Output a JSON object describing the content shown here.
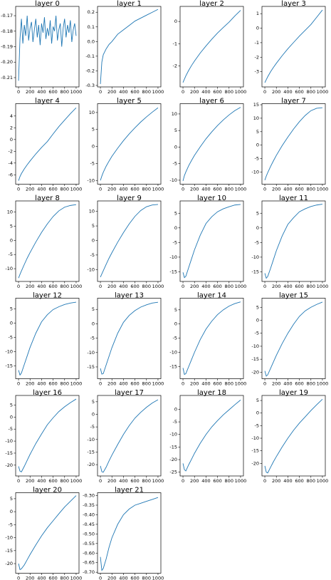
{
  "chart_data": [
    {
      "type": "line",
      "title": "layer 0",
      "color": "#1f77b4",
      "xlim": [
        -50,
        1050
      ],
      "xticks": [
        0,
        200,
        400,
        600,
        800,
        1000
      ],
      "x": [
        0,
        25,
        50,
        75,
        100,
        125,
        150,
        175,
        200,
        225,
        250,
        275,
        300,
        325,
        350,
        375,
        400,
        425,
        450,
        475,
        500,
        525,
        550,
        575,
        600,
        625,
        650,
        675,
        700,
        725,
        750,
        775,
        800,
        825,
        850,
        875,
        900,
        925,
        950,
        975,
        1000
      ],
      "values": [
        -0.212,
        -0.185,
        -0.172,
        -0.188,
        -0.176,
        -0.183,
        -0.17,
        -0.186,
        -0.178,
        -0.174,
        -0.187,
        -0.179,
        -0.172,
        -0.184,
        -0.176,
        -0.189,
        -0.175,
        -0.181,
        -0.171,
        -0.185,
        -0.178,
        -0.183,
        -0.173,
        -0.188,
        -0.177,
        -0.18,
        -0.17,
        -0.186,
        -0.179,
        -0.175,
        -0.19,
        -0.178,
        -0.172,
        -0.184,
        -0.176,
        -0.181,
        -0.173,
        -0.187,
        -0.179,
        -0.175,
        -0.183
      ],
      "ylim": [
        -0.216,
        -0.164
      ],
      "yticks": [
        -0.21,
        {
          "value": -0.2,
          "label": "-0.20"
        },
        -0.19,
        -0.18,
        -0.17
      ]
    },
    {
      "type": "line",
      "title": "layer 1",
      "color": "#1f77b4",
      "xlim": [
        -50,
        1050
      ],
      "xticks": [
        0,
        200,
        400,
        600,
        800,
        1000
      ],
      "x": [
        0,
        25,
        50,
        100,
        150,
        200,
        300,
        400,
        500,
        600,
        700,
        800,
        900,
        1000
      ],
      "values": [
        -0.29,
        -0.14,
        -0.09,
        -0.05,
        -0.02,
        0.0,
        0.05,
        0.08,
        0.11,
        0.14,
        0.16,
        0.18,
        0.2,
        0.22
      ],
      "ylim": [
        -0.31,
        0.24
      ],
      "yticks": [
        -0.3,
        -0.2,
        -0.1,
        {
          "value": 0,
          "label": "0.0"
        },
        0.1,
        0.2
      ]
    },
    {
      "type": "line",
      "title": "layer 2",
      "color": "#1f77b4",
      "xlim": [
        -50,
        1050
      ],
      "xticks": [
        0,
        200,
        400,
        600,
        800,
        1000
      ],
      "x": [
        0,
        25,
        50,
        100,
        150,
        200,
        300,
        400,
        500,
        600,
        700,
        800,
        900,
        1000
      ],
      "values": [
        -2.75,
        -2.6,
        -2.45,
        -2.2,
        -1.98,
        -1.78,
        -1.42,
        -1.1,
        -0.8,
        -0.52,
        -0.27,
        -0.03,
        0.25,
        0.5
      ],
      "ylim": [
        -2.95,
        0.68
      ],
      "yticks": [
        -2,
        -1,
        0
      ]
    },
    {
      "type": "line",
      "title": "layer 3",
      "color": "#1f77b4",
      "xlim": [
        -50,
        1050
      ],
      "xticks": [
        0,
        200,
        400,
        600,
        800,
        1000
      ],
      "x": [
        0,
        25,
        50,
        100,
        150,
        200,
        300,
        400,
        500,
        600,
        700,
        800,
        900,
        1000
      ],
      "values": [
        -3.75,
        -3.55,
        -3.35,
        -3.0,
        -2.7,
        -2.42,
        -1.9,
        -1.42,
        -0.98,
        -0.55,
        -0.15,
        0.25,
        0.75,
        1.25
      ],
      "ylim": [
        -4.05,
        1.5
      ],
      "yticks": [
        -3,
        -2,
        -1,
        0,
        1
      ]
    },
    {
      "type": "line",
      "title": "layer 4",
      "color": "#1f77b4",
      "xlim": [
        -50,
        1050
      ],
      "xticks": [
        0,
        200,
        400,
        600,
        800,
        1000
      ],
      "x": [
        0,
        25,
        50,
        100,
        150,
        200,
        300,
        400,
        500,
        600,
        700,
        800,
        900,
        1000
      ],
      "values": [
        -7.0,
        -6.3,
        -5.8,
        -5.0,
        -4.3,
        -3.65,
        -2.45,
        -1.35,
        -0.35,
        0.95,
        2.2,
        3.3,
        4.4,
        5.4
      ],
      "ylim": [
        -7.6,
        6.1
      ],
      "yticks": [
        -6,
        -4,
        -2,
        0,
        2,
        4
      ]
    },
    {
      "type": "line",
      "title": "layer 5",
      "color": "#1f77b4",
      "xlim": [
        -50,
        1050
      ],
      "xticks": [
        0,
        200,
        400,
        600,
        800,
        1000
      ],
      "x": [
        0,
        25,
        50,
        100,
        150,
        200,
        300,
        400,
        500,
        600,
        700,
        800,
        900,
        1000
      ],
      "values": [
        -10,
        -8.7,
        -7.6,
        -5.8,
        -4.3,
        -2.9,
        -0.5,
        1.7,
        3.7,
        5.5,
        7.2,
        8.7,
        10.1,
        11.4
      ],
      "ylim": [
        -11.1,
        12.6
      ],
      "yticks": [
        -10,
        -5,
        0,
        5,
        10
      ]
    },
    {
      "type": "line",
      "title": "layer 6",
      "color": "#1f77b4",
      "xlim": [
        -50,
        1050
      ],
      "xticks": [
        0,
        200,
        400,
        600,
        800,
        1000
      ],
      "x": [
        0,
        25,
        50,
        100,
        150,
        200,
        300,
        400,
        500,
        600,
        700,
        800,
        900,
        1000
      ],
      "values": [
        -10.2,
        -8.6,
        -7.5,
        -5.6,
        -4.0,
        -2.5,
        0.1,
        2.5,
        4.6,
        6.5,
        8.2,
        9.7,
        11.0,
        12.0
      ],
      "ylim": [
        -11.2,
        13.1
      ],
      "yticks": [
        -10,
        -5,
        0,
        5,
        10
      ]
    },
    {
      "type": "line",
      "title": "layer 7",
      "color": "#1f77b4",
      "xlim": [
        -50,
        1050
      ],
      "xticks": [
        0,
        200,
        400,
        600,
        800,
        1000
      ],
      "x": [
        0,
        25,
        50,
        100,
        150,
        200,
        300,
        400,
        500,
        600,
        700,
        800,
        900,
        1000
      ],
      "values": [
        -13,
        -11.5,
        -10.2,
        -7.9,
        -5.8,
        -3.8,
        -0.2,
        3.0,
        6.0,
        8.7,
        11.0,
        12.8,
        13.7,
        13.9
      ],
      "ylim": [
        -14.5,
        15.4
      ],
      "yticks": [
        -10,
        -5,
        0,
        5,
        10,
        15
      ]
    },
    {
      "type": "line",
      "title": "layer 8",
      "color": "#1f77b4",
      "xlim": [
        -50,
        1050
      ],
      "xticks": [
        0,
        200,
        400,
        600,
        800,
        1000
      ],
      "x": [
        0,
        25,
        50,
        100,
        150,
        200,
        300,
        400,
        500,
        600,
        700,
        800,
        900,
        1000
      ],
      "values": [
        -13.3,
        -12,
        -10.8,
        -8.5,
        -6.3,
        -4.3,
        -0.6,
        2.8,
        5.8,
        8.4,
        10.4,
        11.7,
        12.3,
        12.6
      ],
      "ylim": [
        -14.5,
        13.9
      ],
      "yticks": [
        -10,
        -5,
        0,
        5,
        10
      ]
    },
    {
      "type": "line",
      "title": "layer 9",
      "color": "#1f77b4",
      "xlim": [
        -50,
        1050
      ],
      "xticks": [
        0,
        200,
        400,
        600,
        800,
        1000
      ],
      "x": [
        0,
        25,
        50,
        100,
        150,
        200,
        300,
        400,
        500,
        600,
        700,
        800,
        900,
        1000
      ],
      "values": [
        -12.6,
        -11.5,
        -10.4,
        -8.2,
        -6.1,
        -4.2,
        -0.6,
        2.7,
        5.7,
        8.3,
        10.3,
        11.6,
        12.2,
        12.4
      ],
      "ylim": [
        -14.1,
        13.6
      ],
      "yticks": [
        -10,
        -5,
        0,
        5,
        10
      ]
    },
    {
      "type": "line",
      "title": "layer 10",
      "color": "#1f77b4",
      "xlim": [
        -50,
        1050
      ],
      "xticks": [
        0,
        200,
        400,
        600,
        800,
        1000
      ],
      "x": [
        0,
        25,
        50,
        100,
        150,
        200,
        300,
        400,
        500,
        600,
        700,
        800,
        900,
        1000
      ],
      "values": [
        -15.2,
        -17.0,
        -16.5,
        -13.5,
        -10.5,
        -7.5,
        -2.5,
        1.5,
        3.8,
        5.5,
        6.5,
        7.2,
        7.8,
        8.0
      ],
      "ylim": [
        -18.3,
        9.2
      ],
      "yticks": [
        -15,
        -10,
        -5,
        0,
        5
      ]
    },
    {
      "type": "line",
      "title": "layer 11",
      "color": "#1f77b4",
      "xlim": [
        -50,
        1050
      ],
      "xticks": [
        0,
        200,
        400,
        600,
        800,
        1000
      ],
      "x": [
        0,
        25,
        50,
        100,
        150,
        200,
        300,
        400,
        500,
        600,
        700,
        800,
        900,
        1000
      ],
      "values": [
        -15.5,
        -17.2,
        -16.6,
        -13.8,
        -10.8,
        -7.8,
        -2.8,
        1.2,
        3.5,
        5.5,
        6.5,
        7.3,
        7.8,
        8.1
      ],
      "ylim": [
        -18.3,
        9.2
      ],
      "yticks": [
        -15,
        -10,
        -5,
        0,
        5
      ]
    },
    {
      "type": "line",
      "title": "layer 12",
      "color": "#1f77b4",
      "xlim": [
        -50,
        1050
      ],
      "xticks": [
        0,
        200,
        400,
        600,
        800,
        1000
      ],
      "x": [
        0,
        25,
        50,
        100,
        150,
        200,
        300,
        400,
        500,
        600,
        700,
        800,
        900,
        1000
      ],
      "values": [
        -16.5,
        -18.2,
        -17.5,
        -14.5,
        -11.5,
        -8.5,
        -3.5,
        0.5,
        3.0,
        4.8,
        5.8,
        6.6,
        7.1,
        7.4
      ],
      "ylim": [
        -19.5,
        8.8
      ],
      "yticks": [
        -15,
        -10,
        -5,
        0,
        5
      ]
    },
    {
      "type": "line",
      "title": "layer 13",
      "color": "#1f77b4",
      "xlim": [
        -50,
        1050
      ],
      "xticks": [
        0,
        200,
        400,
        600,
        800,
        1000
      ],
      "x": [
        0,
        25,
        50,
        100,
        150,
        200,
        300,
        400,
        500,
        600,
        700,
        800,
        900,
        1000
      ],
      "values": [
        -15.5,
        -17.5,
        -17.3,
        -14.3,
        -11.3,
        -8.3,
        -3.3,
        0.5,
        2.9,
        4.6,
        5.8,
        6.6,
        7.2,
        7.5
      ],
      "ylim": [
        -19.1,
        8.9
      ],
      "yticks": [
        -15,
        -10,
        -5,
        0,
        5
      ]
    },
    {
      "type": "line",
      "title": "layer 14",
      "color": "#1f77b4",
      "xlim": [
        -50,
        1050
      ],
      "xticks": [
        0,
        200,
        400,
        600,
        800,
        1000
      ],
      "x": [
        0,
        25,
        50,
        100,
        150,
        200,
        300,
        400,
        500,
        600,
        700,
        800,
        900,
        1000
      ],
      "values": [
        -15.5,
        -17.8,
        -17.5,
        -15.0,
        -12.5,
        -10.0,
        -5.5,
        -1.8,
        1.0,
        3.3,
        5.0,
        6.3,
        7.2,
        7.8
      ],
      "ylim": [
        -19.3,
        9.1
      ],
      "yticks": [
        -15,
        -10,
        -5,
        0,
        5
      ]
    },
    {
      "type": "line",
      "title": "layer 15",
      "color": "#1f77b4",
      "xlim": [
        -50,
        1050
      ],
      "xticks": [
        0,
        200,
        400,
        600,
        800,
        1000
      ],
      "x": [
        0,
        25,
        50,
        100,
        150,
        200,
        300,
        400,
        500,
        600,
        700,
        800,
        900,
        1000
      ],
      "values": [
        -19.5,
        -21.5,
        -21.0,
        -18.5,
        -16.0,
        -13.5,
        -9.0,
        -5.0,
        -1.5,
        1.5,
        3.6,
        5.0,
        6.1,
        7.0
      ],
      "ylim": [
        -22.5,
        8.5
      ],
      "yticks": [
        -20,
        -15,
        -10,
        -5,
        0,
        5
      ]
    },
    {
      "type": "line",
      "title": "layer 16",
      "color": "#1f77b4",
      "xlim": [
        -50,
        1050
      ],
      "xticks": [
        0,
        200,
        400,
        600,
        800,
        1000
      ],
      "x": [
        0,
        25,
        50,
        100,
        150,
        200,
        300,
        400,
        500,
        600,
        700,
        800,
        900,
        1000
      ],
      "values": [
        -20.5,
        -22.5,
        -22.8,
        -20.5,
        -18,
        -15.5,
        -11,
        -7,
        -3.2,
        -0.3,
        2.3,
        4.3,
        6.0,
        7.5
      ],
      "ylim": [
        -24.5,
        9
      ],
      "yticks": [
        -20,
        -15,
        -10,
        -5,
        0,
        5
      ]
    },
    {
      "type": "line",
      "title": "layer 17",
      "color": "#1f77b4",
      "xlim": [
        -50,
        1050
      ],
      "xticks": [
        0,
        200,
        400,
        600,
        800,
        1000
      ],
      "x": [
        0,
        25,
        50,
        100,
        150,
        200,
        300,
        400,
        500,
        600,
        700,
        800,
        900,
        1000
      ],
      "values": [
        -20.5,
        -22.8,
        -23.0,
        -21.0,
        -18.5,
        -16.2,
        -12,
        -8,
        -4.5,
        -1.5,
        0.8,
        2.8,
        4.5,
        5.8
      ],
      "ylim": [
        -24.5,
        7.5
      ],
      "yticks": [
        -20,
        -15,
        -10,
        -5,
        0,
        5
      ]
    },
    {
      "type": "line",
      "title": "layer 18",
      "color": "#1f77b4",
      "xlim": [
        -50,
        1050
      ],
      "xticks": [
        0,
        200,
        400,
        600,
        800,
        1000
      ],
      "x": [
        0,
        25,
        50,
        100,
        150,
        200,
        300,
        400,
        500,
        600,
        700,
        800,
        900,
        1000
      ],
      "values": [
        -21.5,
        -24,
        -24.5,
        -22,
        -19.8,
        -17.5,
        -13.5,
        -10,
        -7,
        -4.5,
        -2.2,
        -0.2,
        1.8,
        3.7
      ],
      "ylim": [
        -26.5,
        5.5
      ],
      "yticks": [
        -25,
        -20,
        -15,
        -10,
        -5,
        0
      ]
    },
    {
      "type": "line",
      "title": "layer 19",
      "color": "#1f77b4",
      "xlim": [
        -50,
        1050
      ],
      "xticks": [
        0,
        200,
        400,
        600,
        800,
        1000
      ],
      "x": [
        0,
        25,
        50,
        100,
        150,
        200,
        300,
        400,
        500,
        600,
        700,
        800,
        900,
        1000
      ],
      "values": [
        -21,
        -23.5,
        -23.8,
        -21.5,
        -19.3,
        -17.3,
        -13.5,
        -10,
        -6.8,
        -4,
        -1.5,
        1,
        3.3,
        5.5
      ],
      "ylim": [
        -25,
        7
      ],
      "yticks": [
        -20,
        -15,
        -10,
        -5,
        0,
        5
      ]
    },
    {
      "type": "line",
      "title": "layer 20",
      "color": "#1f77b4",
      "xlim": [
        -50,
        1050
      ],
      "xticks": [
        0,
        200,
        400,
        600,
        800,
        1000
      ],
      "x": [
        0,
        25,
        50,
        100,
        150,
        200,
        300,
        400,
        500,
        600,
        700,
        800,
        900,
        1000
      ],
      "values": [
        -20,
        -22.3,
        -22.0,
        -20.5,
        -18.5,
        -16.5,
        -12.8,
        -9.3,
        -6.2,
        -3.5,
        -0.8,
        1.8,
        4,
        6.2
      ],
      "ylim": [
        -23.7,
        7.3
      ],
      "yticks": [
        -20,
        -15,
        -10,
        -5,
        0,
        5
      ]
    },
    {
      "type": "line",
      "title": "layer 21",
      "color": "#1f77b4",
      "xlim": [
        -50,
        1050
      ],
      "xticks": [
        0,
        200,
        400,
        600,
        800,
        1000
      ],
      "x": [
        0,
        25,
        50,
        100,
        150,
        200,
        300,
        400,
        500,
        600,
        700,
        800,
        900,
        1000
      ],
      "values": [
        -0.62,
        -0.69,
        -0.68,
        -0.63,
        -0.57,
        -0.52,
        -0.45,
        -0.4,
        -0.37,
        -0.35,
        -0.34,
        -0.33,
        -0.32,
        -0.31
      ],
      "ylim": [
        -0.705,
        -0.285
      ],
      "yticks": [
        {
          "value": -0.7,
          "label": "-0.70"
        },
        -0.65,
        {
          "value": -0.6,
          "label": "-0.60"
        },
        -0.55,
        {
          "value": -0.5,
          "label": "-0.50"
        },
        -0.45,
        {
          "value": -0.4,
          "label": "-0.40"
        },
        -0.35,
        {
          "value": -0.3,
          "label": "-0.30"
        }
      ]
    }
  ]
}
